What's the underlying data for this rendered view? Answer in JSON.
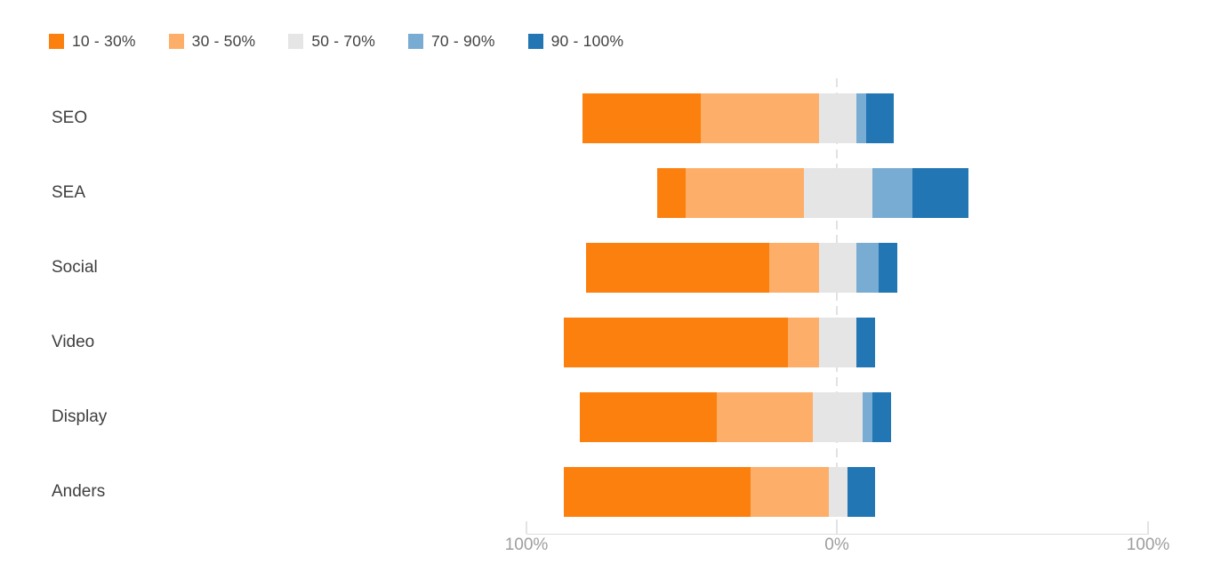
{
  "chart_data": {
    "type": "bar",
    "variant": "diverging-stacked-horizontal",
    "categories": [
      "SEO",
      "SEA",
      "Social",
      "Video",
      "Display",
      "Anders"
    ],
    "series": [
      {
        "name": "10 - 30%",
        "color": "#FB800E",
        "values": [
          38,
          9,
          59,
          72,
          44,
          60
        ]
      },
      {
        "name": "30 - 50%",
        "color": "#FDAF6A",
        "values": [
          38,
          38,
          16,
          10,
          31,
          25
        ]
      },
      {
        "name": "50 - 70%",
        "color": "#E5E5E5",
        "values": [
          12,
          22,
          12,
          12,
          16,
          6
        ]
      },
      {
        "name": "70 - 90%",
        "color": "#79ACD3",
        "values": [
          3,
          13,
          7,
          0,
          3,
          0
        ]
      },
      {
        "name": "90 - 100%",
        "color": "#2176B3",
        "values": [
          9,
          18,
          6,
          6,
          6,
          9
        ]
      }
    ],
    "axis": {
      "left_label": "100%",
      "center_label": "0%",
      "right_label": "100%",
      "xlim": [
        -100,
        100
      ]
    },
    "legend_position": "top-left",
    "grid": "single dashed vertical gridline at 0%",
    "layout_note": "middle series (50 - 70%) is split evenly across the zero line; units are percent of responses"
  }
}
